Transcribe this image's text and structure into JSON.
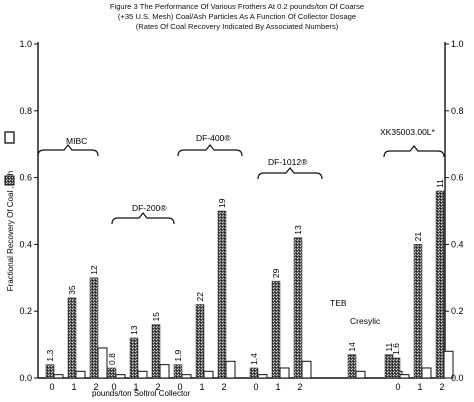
{
  "header": {
    "line1": "Figure 3   The Performance Of Various Frothers At 0.2 pounds/ton Of Coarse",
    "line2": "(+35 U.S. Mesh) Coal/Ash Particles As A Function Of Collector Dosage",
    "line3": "(Rates Of Coal Recovery Indicated By Associated Numbers)"
  },
  "chart_data": {
    "type": "bar",
    "title": "The Performance Of Various Frothers At 0.2 pounds/ton Of Coarse (+35 U.S. Mesh) Coal/Ash Particles As A Function Of Collector Dosage",
    "subtitle": "(Rates Of Coal Recovery Indicated By Associated Numbers)",
    "xlabel": "pounds/ton Soltrol Collector",
    "ylabel": "Fractional Recovery Of Coal , Ash",
    "ylim": [
      0,
      1.0
    ],
    "yticks": [
      "0.0",
      "0.2",
      "0.4",
      "0.6",
      "0.8",
      "1.0"
    ],
    "grid": false,
    "series_legend": [
      {
        "name": "Coal",
        "color": "#333333",
        "pattern": "stippled"
      },
      {
        "name": "Ash",
        "color": "#ffffff",
        "pattern": "open"
      }
    ],
    "groups": [
      {
        "name": "MIBC",
        "dosages": [
          "0",
          "1",
          "2"
        ],
        "coal": [
          0.04,
          0.24,
          0.3
        ],
        "ash": [
          0.01,
          0.02,
          0.09
        ],
        "rate_labels": [
          "1.3",
          "35",
          "12"
        ]
      },
      {
        "name": "DF-200®",
        "dosages": [
          "0",
          "1",
          "2"
        ],
        "coal": [
          0.03,
          0.12,
          0.16
        ],
        "ash": [
          0.01,
          0.02,
          0.04
        ],
        "rate_labels": [
          "0.8",
          "13",
          "15"
        ]
      },
      {
        "name": "DF-400®",
        "dosages": [
          "0",
          "1",
          "2"
        ],
        "coal": [
          0.04,
          0.22,
          0.5
        ],
        "ash": [
          0.01,
          0.02,
          0.05
        ],
        "rate_labels": [
          "1.9",
          "22",
          "19"
        ]
      },
      {
        "name": "DF-1012®",
        "dosages": [
          "0",
          "1",
          "2"
        ],
        "coal": [
          0.03,
          0.29,
          0.42
        ],
        "ash": [
          0.01,
          0.03,
          0.05
        ],
        "rate_labels": [
          "1.4",
          "29",
          "13"
        ]
      },
      {
        "name": "TEB",
        "dosages": [
          "0",
          "1",
          "2"
        ],
        "coal": [
          0,
          0.07,
          0
        ],
        "ash": [
          0,
          0.02,
          0
        ],
        "rate_labels": [
          "",
          "14",
          ""
        ]
      },
      {
        "name": "Cresylic",
        "dosages": [
          "0",
          "1",
          "2"
        ],
        "coal": [
          0,
          0.07,
          0
        ],
        "ash": [
          0,
          0.02,
          0
        ],
        "rate_labels": [
          "",
          "11",
          ""
        ]
      },
      {
        "name": "XK35003.00L*",
        "dosages": [
          "0",
          "1",
          "2"
        ],
        "coal": [
          0.06,
          0.4,
          0.56
        ],
        "ash": [
          0.01,
          0.03,
          0.08
        ],
        "rate_labels": [
          "1.6",
          "21",
          "11"
        ]
      }
    ]
  }
}
